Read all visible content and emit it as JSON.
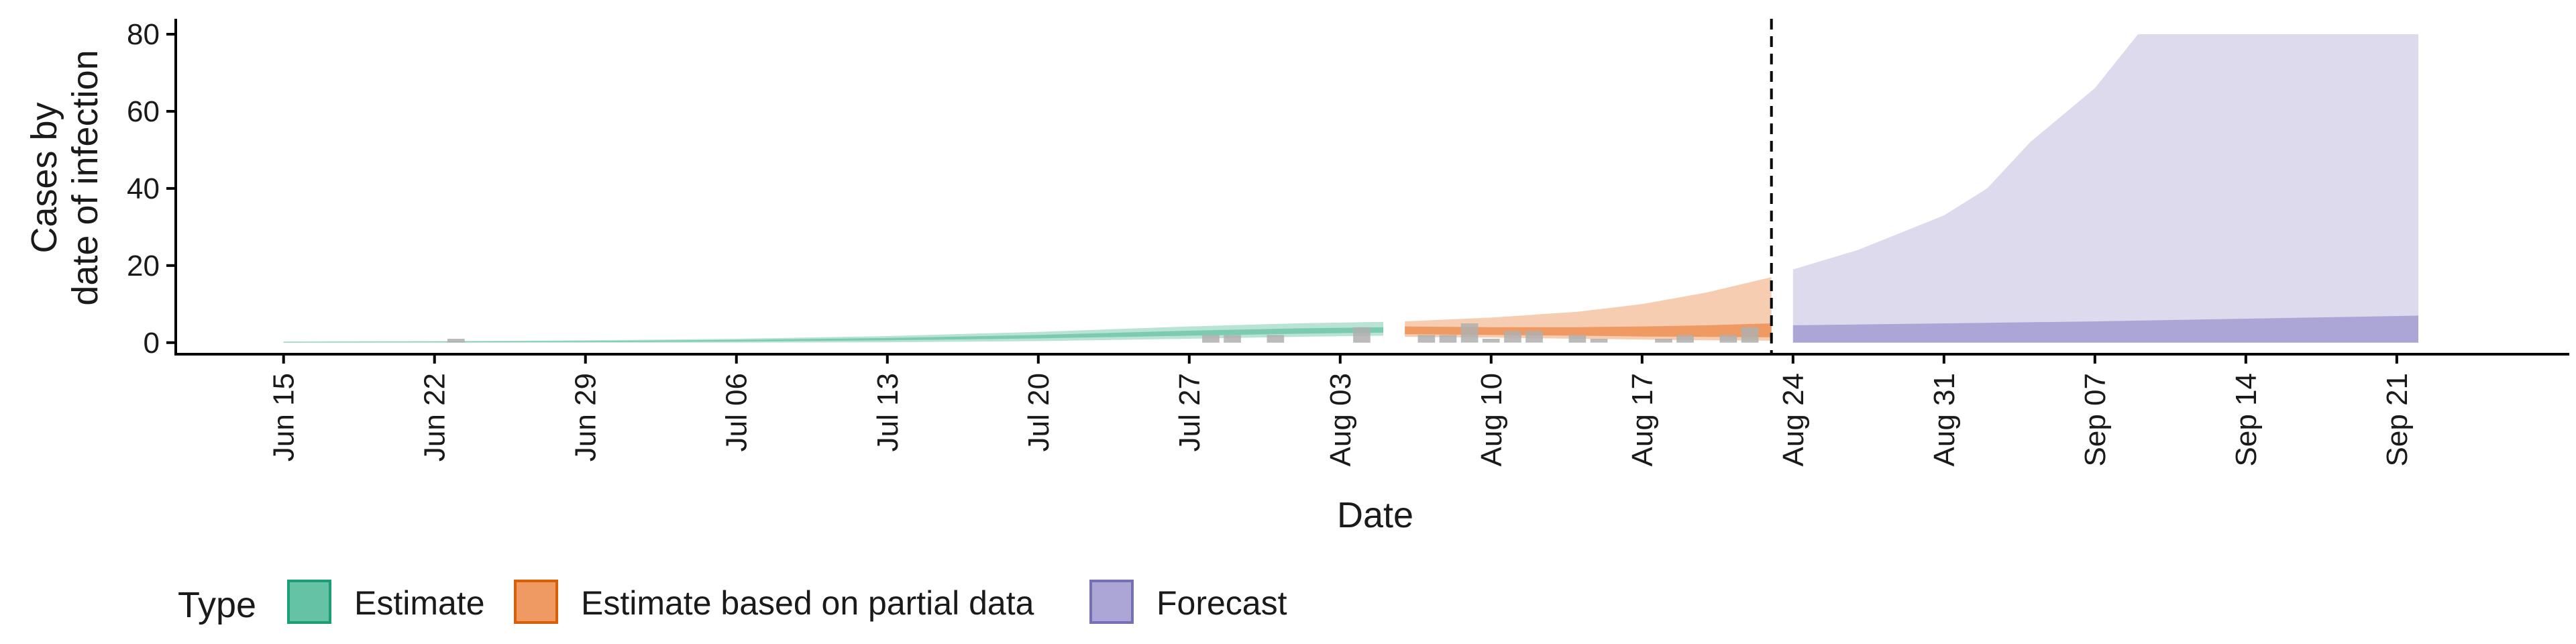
{
  "chart_data": {
    "type": "area",
    "title": "",
    "xlabel": "Date",
    "ylabel_lines": [
      "Cases by",
      "date of infection"
    ],
    "ylim": [
      -3,
      84
    ],
    "yticks": [
      0,
      20,
      40,
      60,
      80
    ],
    "xlim": [
      "2020-06-10",
      "2020-09-29"
    ],
    "xticks": [
      {
        "date": "2020-06-15",
        "label": "Jun 15"
      },
      {
        "date": "2020-06-22",
        "label": "Jun 22"
      },
      {
        "date": "2020-06-29",
        "label": "Jun 29"
      },
      {
        "date": "2020-07-06",
        "label": "Jul 06"
      },
      {
        "date": "2020-07-13",
        "label": "Jul 13"
      },
      {
        "date": "2020-07-20",
        "label": "Jul 20"
      },
      {
        "date": "2020-07-27",
        "label": "Jul 27"
      },
      {
        "date": "2020-08-03",
        "label": "Aug 03"
      },
      {
        "date": "2020-08-10",
        "label": "Aug 10"
      },
      {
        "date": "2020-08-17",
        "label": "Aug 17"
      },
      {
        "date": "2020-08-24",
        "label": "Aug 24"
      },
      {
        "date": "2020-08-31",
        "label": "Aug 31"
      },
      {
        "date": "2020-09-07",
        "label": "Sep 07"
      },
      {
        "date": "2020-09-14",
        "label": "Sep 14"
      },
      {
        "date": "2020-09-21",
        "label": "Sep 21"
      }
    ],
    "grid": false,
    "vline_date": "2020-08-23",
    "legend": {
      "position": "bottom",
      "title": "Type",
      "entries": [
        {
          "label": "Estimate",
          "fill": "#66C2A5",
          "stroke": "#1B9E77"
        },
        {
          "label": "Estimate based on partial data",
          "fill": "#EE9A62",
          "stroke": "#D95F02"
        },
        {
          "label": "Forecast",
          "fill": "#ABA6D6",
          "stroke": "#7570B3"
        }
      ]
    },
    "colors": {
      "estimate_outer": "#B9E3D4",
      "estimate_inner": "#7CCBAF",
      "partial_outer": "#F6CDB1",
      "partial_inner": "#EE9A62",
      "forecast_outer": "#DCDAEC",
      "forecast_inner": "#ABA6D6",
      "observed": "#AFAFAF",
      "axis": "#000000"
    },
    "observed_cases": [
      {
        "date": "2020-06-23",
        "value": 1
      },
      {
        "date": "2020-07-28",
        "value": 2
      },
      {
        "date": "2020-07-29",
        "value": 2
      },
      {
        "date": "2020-07-31",
        "value": 2
      },
      {
        "date": "2020-08-04",
        "value": 4
      },
      {
        "date": "2020-08-07",
        "value": 2
      },
      {
        "date": "2020-08-08",
        "value": 2
      },
      {
        "date": "2020-08-09",
        "value": 5
      },
      {
        "date": "2020-08-10",
        "value": 1
      },
      {
        "date": "2020-08-11",
        "value": 3
      },
      {
        "date": "2020-08-12",
        "value": 3
      },
      {
        "date": "2020-08-14",
        "value": 2
      },
      {
        "date": "2020-08-15",
        "value": 1
      },
      {
        "date": "2020-08-18",
        "value": 1
      },
      {
        "date": "2020-08-19",
        "value": 2
      },
      {
        "date": "2020-08-21",
        "value": 2
      },
      {
        "date": "2020-08-22",
        "value": 4
      }
    ],
    "series": [
      {
        "name": "Estimate",
        "outer": [
          {
            "date": "2020-06-15",
            "lo": 0,
            "hi": 0.3
          },
          {
            "date": "2020-06-22",
            "lo": 0,
            "hi": 0.4
          },
          {
            "date": "2020-06-29",
            "lo": 0,
            "hi": 0.6
          },
          {
            "date": "2020-07-06",
            "lo": 0,
            "hi": 1.0
          },
          {
            "date": "2020-07-13",
            "lo": 0.1,
            "hi": 1.7
          },
          {
            "date": "2020-07-20",
            "lo": 0.4,
            "hi": 2.8
          },
          {
            "date": "2020-07-27",
            "lo": 1.0,
            "hi": 4.2
          },
          {
            "date": "2020-08-01",
            "lo": 1.5,
            "hi": 5.0
          },
          {
            "date": "2020-08-05",
            "lo": 1.8,
            "hi": 5.4
          }
        ],
        "inner": [
          {
            "date": "2020-06-15",
            "lo": 0.05,
            "hi": 0.15
          },
          {
            "date": "2020-06-22",
            "lo": 0.1,
            "hi": 0.25
          },
          {
            "date": "2020-06-29",
            "lo": 0.15,
            "hi": 0.4
          },
          {
            "date": "2020-07-06",
            "lo": 0.3,
            "hi": 0.7
          },
          {
            "date": "2020-07-13",
            "lo": 0.6,
            "hi": 1.2
          },
          {
            "date": "2020-07-20",
            "lo": 1.1,
            "hi": 2.0
          },
          {
            "date": "2020-07-27",
            "lo": 1.8,
            "hi": 3.1
          },
          {
            "date": "2020-08-01",
            "lo": 2.3,
            "hi": 3.7
          },
          {
            "date": "2020-08-05",
            "lo": 2.6,
            "hi": 4.0
          }
        ]
      },
      {
        "name": "Estimate based on partial data",
        "outer": [
          {
            "date": "2020-08-06",
            "lo": 1.5,
            "hi": 5.5
          },
          {
            "date": "2020-08-10",
            "lo": 1.3,
            "hi": 6.5
          },
          {
            "date": "2020-08-14",
            "lo": 1.0,
            "hi": 8.0
          },
          {
            "date": "2020-08-17",
            "lo": 0.8,
            "hi": 10.0
          },
          {
            "date": "2020-08-20",
            "lo": 0.6,
            "hi": 13.0
          },
          {
            "date": "2020-08-23",
            "lo": 0.5,
            "hi": 17.0
          }
        ],
        "inner": [
          {
            "date": "2020-08-06",
            "lo": 2.2,
            "hi": 4.2
          },
          {
            "date": "2020-08-10",
            "lo": 2.0,
            "hi": 4.0
          },
          {
            "date": "2020-08-14",
            "lo": 1.8,
            "hi": 4.0
          },
          {
            "date": "2020-08-17",
            "lo": 1.6,
            "hi": 4.2
          },
          {
            "date": "2020-08-20",
            "lo": 1.5,
            "hi": 4.5
          },
          {
            "date": "2020-08-23",
            "lo": 1.4,
            "hi": 5.0
          }
        ]
      },
      {
        "name": "Forecast",
        "outer": [
          {
            "date": "2020-08-24",
            "lo": 0,
            "hi": 19
          },
          {
            "date": "2020-08-27",
            "lo": 0,
            "hi": 24
          },
          {
            "date": "2020-08-31",
            "lo": 0,
            "hi": 33
          },
          {
            "date": "2020-09-02",
            "lo": 0,
            "hi": 40
          },
          {
            "date": "2020-09-04",
            "lo": 0,
            "hi": 52
          },
          {
            "date": "2020-09-07",
            "lo": 0,
            "hi": 66
          },
          {
            "date": "2020-09-09",
            "lo": 0,
            "hi": 80
          },
          {
            "date": "2020-09-22",
            "lo": 0,
            "hi": 80
          }
        ],
        "inner": [
          {
            "date": "2020-08-24",
            "lo": 0,
            "hi": 4.5
          },
          {
            "date": "2020-09-07",
            "lo": 0,
            "hi": 5.5
          },
          {
            "date": "2020-09-22",
            "lo": 0,
            "hi": 7.0
          }
        ]
      }
    ]
  }
}
